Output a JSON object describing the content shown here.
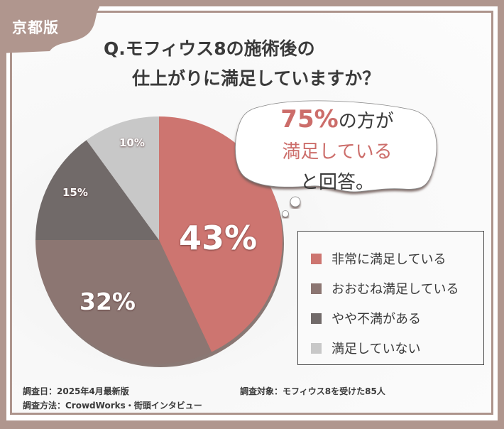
{
  "badge": {
    "label": "京都版"
  },
  "title": {
    "line1": "Q.モフィウス8の施術後の",
    "line2": "仕上がりに満足していますか？"
  },
  "callout": {
    "percent": "75%",
    "line1_rest": "の方が",
    "line2": "満足している",
    "line3": "と回答。"
  },
  "legend": {
    "items": [
      {
        "label": "非常に満足している",
        "color": "#cd7570"
      },
      {
        "label": "おおむね満足している",
        "color": "#8c7672"
      },
      {
        "label": "やや不満がある",
        "color": "#716a69"
      },
      {
        "label": "満足していない",
        "color": "#c8c8c8"
      }
    ]
  },
  "footer": {
    "date": "調査日：2025年4月最新版",
    "method": "調査方法：CrowdWorks・街頭インタビュー",
    "target": "調査対象：モフィウス8を受けた85人"
  },
  "colors": {
    "frame": "#b0968e",
    "accent": "#cc6d6a",
    "text": "#3a3a3a"
  },
  "chart_data": {
    "type": "pie",
    "title": "Q.モフィウス8の施術後の仕上がりに満足していますか？",
    "categories": [
      "非常に満足している",
      "おおむね満足している",
      "やや不満がある",
      "満足していない"
    ],
    "values": [
      43,
      32,
      15,
      10
    ],
    "labels": [
      "43%",
      "32%",
      "15%",
      "10%"
    ],
    "colors": [
      "#cd7570",
      "#8c7672",
      "#716a69",
      "#c8c8c8"
    ],
    "start_angle": "12 o'clock, clockwise",
    "legend_position": "right",
    "annotation": "75%の方が満足していると回答。",
    "sample_size": 85
  }
}
